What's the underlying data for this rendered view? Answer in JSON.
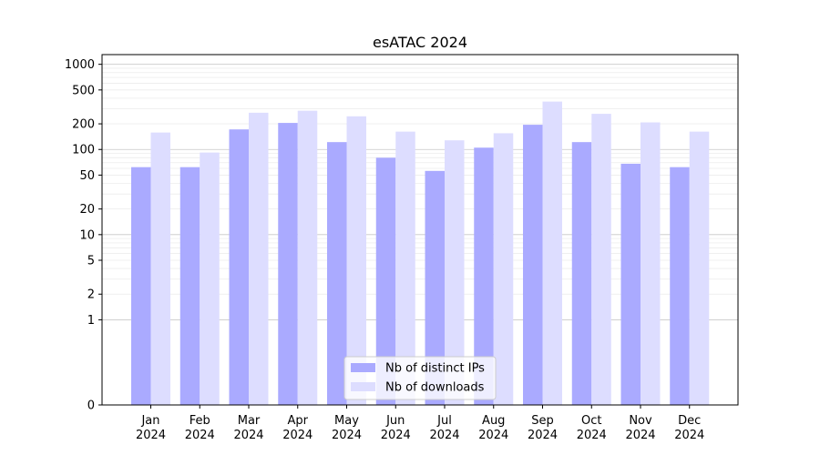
{
  "chart_data": {
    "type": "bar",
    "title": "esATAC 2024",
    "xlabel": "",
    "ylabel": "",
    "y_scale": "symlog",
    "ylim": [
      0,
      1300
    ],
    "y_ticks": [
      0,
      1,
      2,
      5,
      10,
      20,
      50,
      100,
      200,
      500,
      1000
    ],
    "grid": true,
    "legend_position": "bottom-center",
    "categories": [
      "Jan\n2024",
      "Feb\n2024",
      "Mar\n2024",
      "Apr\n2024",
      "May\n2024",
      "Jun\n2024",
      "Jul\n2024",
      "Aug\n2024",
      "Sep\n2024",
      "Oct\n2024",
      "Nov\n2024",
      "Dec\n2024"
    ],
    "series": [
      {
        "name": "Nb of distinct IPs",
        "color": "#aaaaff",
        "values": [
          62,
          62,
          172,
          205,
          122,
          80,
          56,
          105,
          195,
          122,
          68,
          62
        ]
      },
      {
        "name": "Nb of downloads",
        "color": "#ddddff",
        "values": [
          158,
          92,
          270,
          285,
          245,
          162,
          128,
          155,
          365,
          262,
          208,
          162
        ]
      }
    ]
  }
}
